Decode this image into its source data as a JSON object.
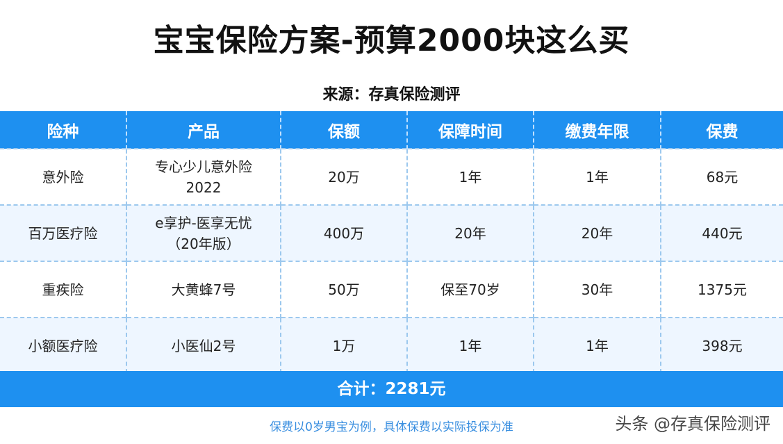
{
  "title": "宝宝保险方案-预算2000块这么买",
  "source": "来源：存真保险测评",
  "table": {
    "headers": [
      "险种",
      "产品",
      "保额",
      "保障时间",
      "缴费年限",
      "保费"
    ],
    "rows": [
      {
        "type": "意外险",
        "product_line1": "专心少儿意外险",
        "product_line2": "2022",
        "amount": "20万",
        "coverage": "1年",
        "payment": "1年",
        "premium": "68元"
      },
      {
        "type": "百万医疗险",
        "product_line1": "e享护-医享无忧",
        "product_line2": "（20年版）",
        "amount": "400万",
        "coverage": "20年",
        "payment": "20年",
        "premium": "440元"
      },
      {
        "type": "重疾险",
        "product_line1": "大黄蜂7号",
        "product_line2": "",
        "amount": "50万",
        "coverage": "保至70岁",
        "payment": "30年",
        "premium": "1375元"
      },
      {
        "type": "小额医疗险",
        "product_line1": "小医仙2号",
        "product_line2": "",
        "amount": "1万",
        "coverage": "1年",
        "payment": "1年",
        "premium": "398元"
      }
    ]
  },
  "total": "合计：2281元",
  "footnote": "保费以0岁男宝为例，具体保费以实际投保为准",
  "watermark": "头条 @存真保险测评",
  "colors": {
    "header_blue": "#1e90f0",
    "row_alt": "#eef6ff",
    "footnote_blue": "#3a8fe0"
  }
}
